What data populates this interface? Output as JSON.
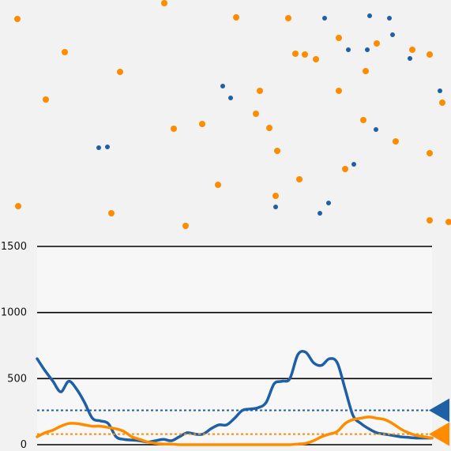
{
  "colors": {
    "blue": "#1f5fa6",
    "orange": "#ff8c00",
    "background": "#f2f2f2",
    "panel": "#f7f7f7",
    "gridline": "#000000"
  },
  "chart_data": [
    {
      "type": "scatter",
      "title": "",
      "xlabel": "",
      "ylabel": "",
      "xlim": [
        0,
        571
      ],
      "ylim": [
        0,
        290
      ],
      "axes_visible": false,
      "series": [
        {
          "color": "#1f5fa6",
          "marker_size": "small",
          "points": [
            [
              411,
              267
            ],
            [
              468,
              270
            ],
            [
              493,
              267
            ],
            [
              497,
              246
            ],
            [
              441,
              227
            ],
            [
              465,
              227
            ],
            [
              519,
              216
            ],
            [
              282,
              181
            ],
            [
              292,
              166
            ],
            [
              557,
              175
            ],
            [
              125,
              103
            ],
            [
              136,
              104
            ],
            [
              476,
              126
            ],
            [
              448,
              82
            ],
            [
              416,
              33
            ],
            [
              405,
              20
            ],
            [
              349,
              28
            ]
          ]
        },
        {
          "color": "#ff8c00",
          "marker_size": "large",
          "points": [
            [
              208,
              286
            ],
            [
              22,
              266
            ],
            [
              299,
              268
            ],
            [
              365,
              267
            ],
            [
              429,
              242
            ],
            [
              477,
              235
            ],
            [
              522,
              227
            ],
            [
              82,
              224
            ],
            [
              374,
              222
            ],
            [
              386,
              221
            ],
            [
              400,
              215
            ],
            [
              544,
              221
            ],
            [
              152,
              199
            ],
            [
              463,
              200
            ],
            [
              329,
              175
            ],
            [
              429,
              175
            ],
            [
              58,
              164
            ],
            [
              560,
              160
            ],
            [
              324,
              146
            ],
            [
              460,
              138
            ],
            [
              256,
              133
            ],
            [
              220,
              127
            ],
            [
              341,
              128
            ],
            [
              501,
              111
            ],
            [
              351,
              99
            ],
            [
              544,
              96
            ],
            [
              437,
              76
            ],
            [
              379,
              63
            ],
            [
              276,
              56
            ],
            [
              349,
              42
            ],
            [
              23,
              29
            ],
            [
              141,
              20
            ],
            [
              235,
              4
            ],
            [
              544,
              11
            ],
            [
              568,
              9
            ]
          ]
        }
      ]
    },
    {
      "type": "line",
      "title": "",
      "xlabel": "",
      "ylabel": "",
      "ylim": [
        0,
        1500
      ],
      "yticks": [
        {
          "value": 0,
          "label": "0"
        },
        {
          "value": 500,
          "label": "500"
        },
        {
          "value": 1000,
          "label": "1000"
        },
        {
          "value": 1500,
          "label": "1500"
        }
      ],
      "grid": true,
      "x": [
        0,
        1,
        2,
        3,
        4,
        5,
        6,
        7,
        8,
        9,
        10,
        11,
        12,
        13,
        14,
        15,
        16,
        17,
        18,
        19,
        20,
        21,
        22,
        23,
        24,
        25,
        26,
        27,
        28,
        29,
        30,
        31,
        32,
        33,
        34,
        35,
        36,
        37,
        38,
        39,
        40,
        41,
        42,
        43,
        44,
        45,
        46,
        47,
        48,
        49,
        50
      ],
      "series": [
        {
          "color": "#1f5fa6",
          "reference_line": 260,
          "values": [
            650,
            560,
            480,
            400,
            480,
            420,
            320,
            200,
            180,
            160,
            60,
            40,
            35,
            30,
            20,
            30,
            40,
            30,
            60,
            90,
            80,
            80,
            120,
            150,
            150,
            200,
            260,
            270,
            280,
            320,
            460,
            480,
            500,
            680,
            700,
            620,
            600,
            650,
            620,
            420,
            220,
            160,
            120,
            90,
            80,
            70,
            60,
            55,
            50,
            50,
            50
          ]
        },
        {
          "color": "#ff8c00",
          "reference_line": 80,
          "values": [
            60,
            90,
            110,
            140,
            160,
            160,
            150,
            140,
            140,
            130,
            120,
            100,
            60,
            40,
            20,
            10,
            5,
            5,
            0,
            0,
            0,
            0,
            0,
            0,
            0,
            0,
            0,
            0,
            0,
            0,
            0,
            0,
            0,
            5,
            10,
            30,
            60,
            80,
            100,
            160,
            190,
            200,
            210,
            200,
            190,
            160,
            120,
            90,
            70,
            60,
            50
          ]
        }
      ]
    }
  ]
}
